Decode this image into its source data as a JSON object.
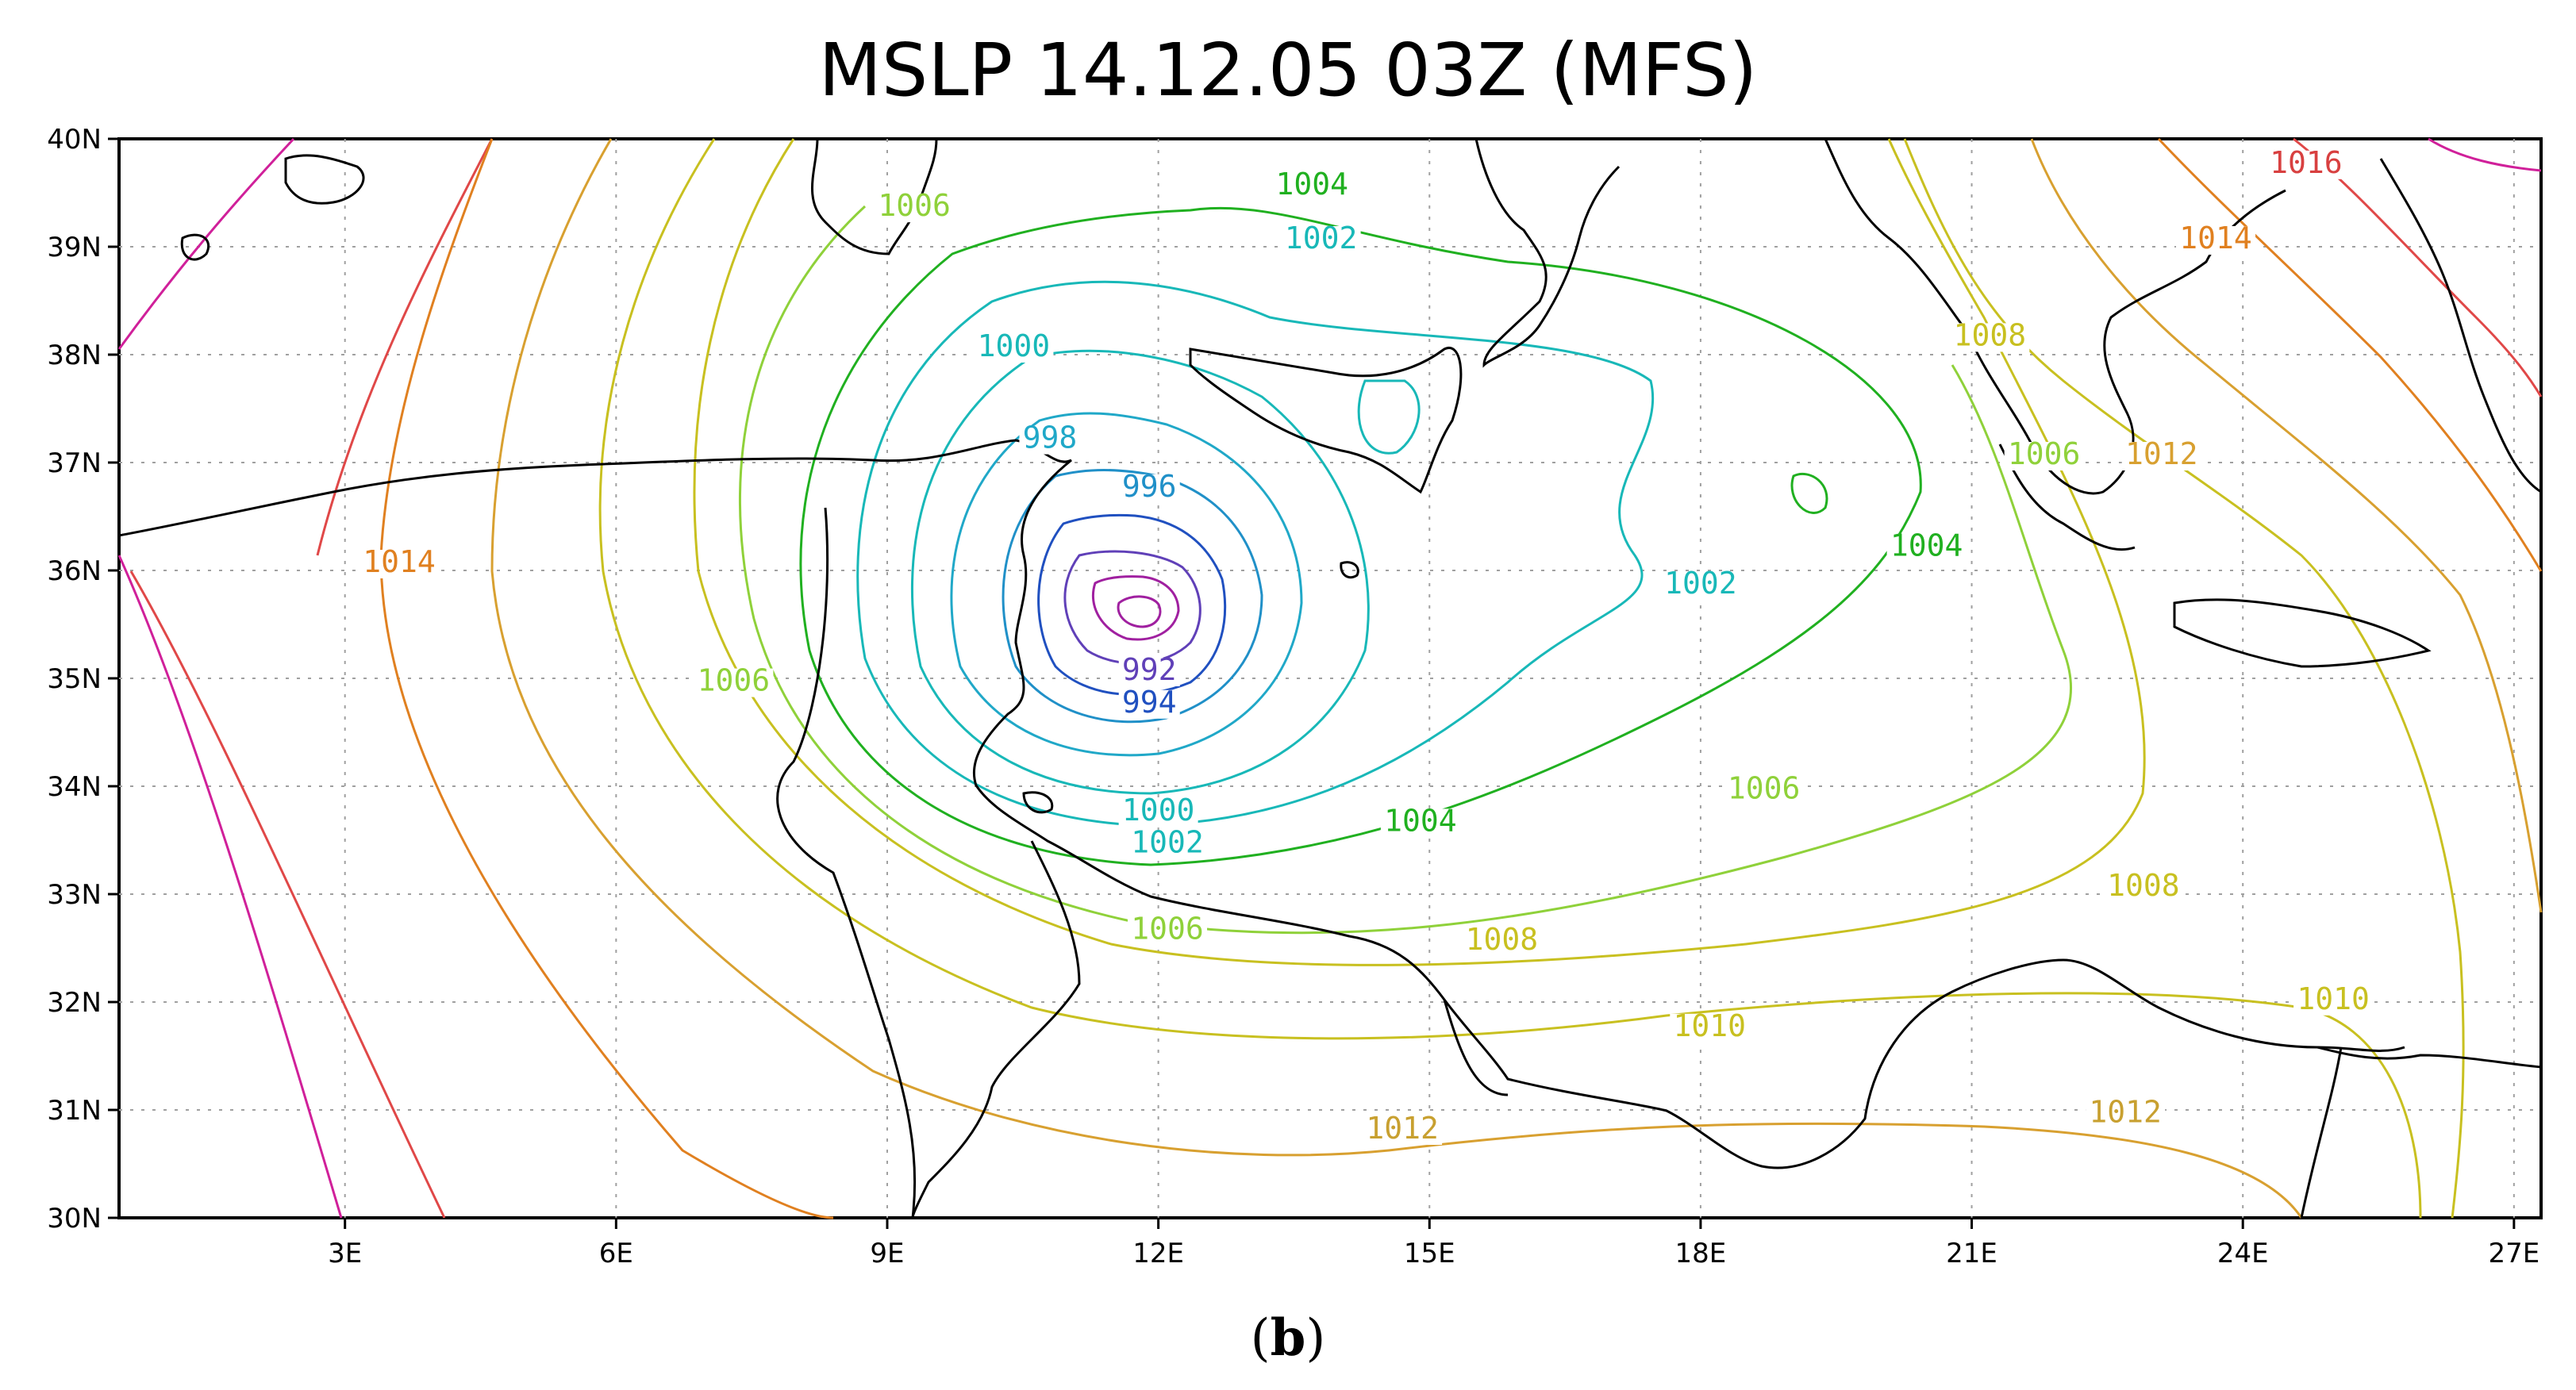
{
  "title": "MSLP 14.12.05 03Z (MFS)",
  "caption": {
    "open": "(",
    "letter": "b",
    "close": ")"
  },
  "map": {
    "lon_range": [
      0.5,
      27.3
    ],
    "lat_range": [
      30,
      40
    ],
    "x_ticks": [
      {
        "value": 3,
        "label": "3E"
      },
      {
        "value": 6,
        "label": "6E"
      },
      {
        "value": 9,
        "label": "9E"
      },
      {
        "value": 12,
        "label": "12E"
      },
      {
        "value": 15,
        "label": "15E"
      },
      {
        "value": 18,
        "label": "18E"
      },
      {
        "value": 21,
        "label": "21E"
      },
      {
        "value": 24,
        "label": "24E"
      },
      {
        "value": 27,
        "label": "27E"
      }
    ],
    "y_ticks": [
      {
        "value": 30,
        "label": "30N"
      },
      {
        "value": 31,
        "label": "31N"
      },
      {
        "value": 32,
        "label": "32N"
      },
      {
        "value": 33,
        "label": "33N"
      },
      {
        "value": 34,
        "label": "34N"
      },
      {
        "value": 35,
        "label": "35N"
      },
      {
        "value": 36,
        "label": "36N"
      },
      {
        "value": 37,
        "label": "37N"
      },
      {
        "value": 38,
        "label": "38N"
      },
      {
        "value": 39,
        "label": "39N"
      },
      {
        "value": 40,
        "label": "40N"
      }
    ],
    "grid": "dotted",
    "contour_labels": [
      {
        "text": "1006",
        "lon": 9.3,
        "lat": 39.3,
        "color": "#8fd13a"
      },
      {
        "text": "1004",
        "lon": 13.7,
        "lat": 39.5,
        "color": "#20b020"
      },
      {
        "text": "1002",
        "lon": 13.8,
        "lat": 39.0,
        "color": "#18b8b8"
      },
      {
        "text": "1000",
        "lon": 10.4,
        "lat": 38.0,
        "color": "#18b8b8"
      },
      {
        "text": "998",
        "lon": 10.8,
        "lat": 37.15,
        "color": "#20a8c8"
      },
      {
        "text": "996",
        "lon": 11.9,
        "lat": 36.7,
        "color": "#2090c8"
      },
      {
        "text": "994",
        "lon": 11.9,
        "lat": 34.7,
        "color": "#2050c0"
      },
      {
        "text": "992",
        "lon": 11.9,
        "lat": 35.0,
        "color": "#6040b8"
      },
      {
        "text": "1000",
        "lon": 12.0,
        "lat": 33.7,
        "color": "#18b8b8"
      },
      {
        "text": "1002",
        "lon": 12.1,
        "lat": 33.4,
        "color": "#18b8b8"
      },
      {
        "text": "1004",
        "lon": 14.9,
        "lat": 33.6,
        "color": "#20b020"
      },
      {
        "text": "1006",
        "lon": 12.1,
        "lat": 32.6,
        "color": "#8fd13a"
      },
      {
        "text": "1008",
        "lon": 15.8,
        "lat": 32.5,
        "color": "#c8c020"
      },
      {
        "text": "1010",
        "lon": 18.1,
        "lat": 31.7,
        "color": "#c8c020"
      },
      {
        "text": "1012",
        "lon": 14.7,
        "lat": 30.75,
        "color": "#c8a030"
      },
      {
        "text": "1014",
        "lon": 3.6,
        "lat": 36.0,
        "color": "#e08020"
      },
      {
        "text": "1006",
        "lon": 7.3,
        "lat": 34.9,
        "color": "#8fd13a"
      },
      {
        "text": "1002",
        "lon": 18.0,
        "lat": 35.8,
        "color": "#18b8b8"
      },
      {
        "text": "1004",
        "lon": 20.5,
        "lat": 36.15,
        "color": "#20b020"
      },
      {
        "text": "1006",
        "lon": 18.7,
        "lat": 33.9,
        "color": "#8fd13a"
      },
      {
        "text": "1008",
        "lon": 21.2,
        "lat": 38.1,
        "color": "#c8c020"
      },
      {
        "text": "1006",
        "lon": 21.8,
        "lat": 37.0,
        "color": "#8fd13a"
      },
      {
        "text": "1012",
        "lon": 23.1,
        "lat": 37.0,
        "color": "#d8a030"
      },
      {
        "text": "1014",
        "lon": 23.7,
        "lat": 39.0,
        "color": "#e08020"
      },
      {
        "text": "1016",
        "lon": 24.7,
        "lat": 39.7,
        "color": "#d84040"
      },
      {
        "text": "1008",
        "lon": 22.9,
        "lat": 33.0,
        "color": "#c8c020"
      },
      {
        "text": "1010",
        "lon": 25.0,
        "lat": 31.95,
        "color": "#c8c020"
      },
      {
        "text": "1012",
        "lon": 22.7,
        "lat": 30.9,
        "color": "#c8a030"
      }
    ]
  },
  "colors": {
    "low_center": "#a020a0",
    "coastline": "#000000",
    "grid": "#a0a0a0"
  }
}
